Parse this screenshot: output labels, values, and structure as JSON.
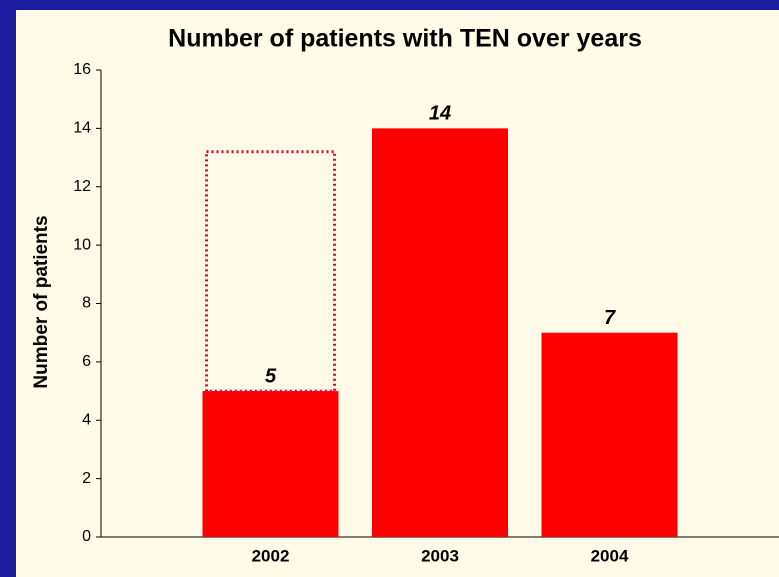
{
  "chart_data": {
    "type": "bar",
    "title": "Number of patients with TEN over years",
    "y_label": "Number of patients",
    "categories": [
      "2002",
      "2003",
      "2004"
    ],
    "values": [
      5,
      14,
      7
    ],
    "color": "#ff0000",
    "outline_values": [
      13.2,
      null,
      null
    ],
    "outline_color": "#e0003c",
    "ylim": [
      0,
      16
    ],
    "yticks": [
      0,
      2,
      4,
      6,
      8,
      10,
      12,
      14,
      16
    ],
    "grid": false
  }
}
